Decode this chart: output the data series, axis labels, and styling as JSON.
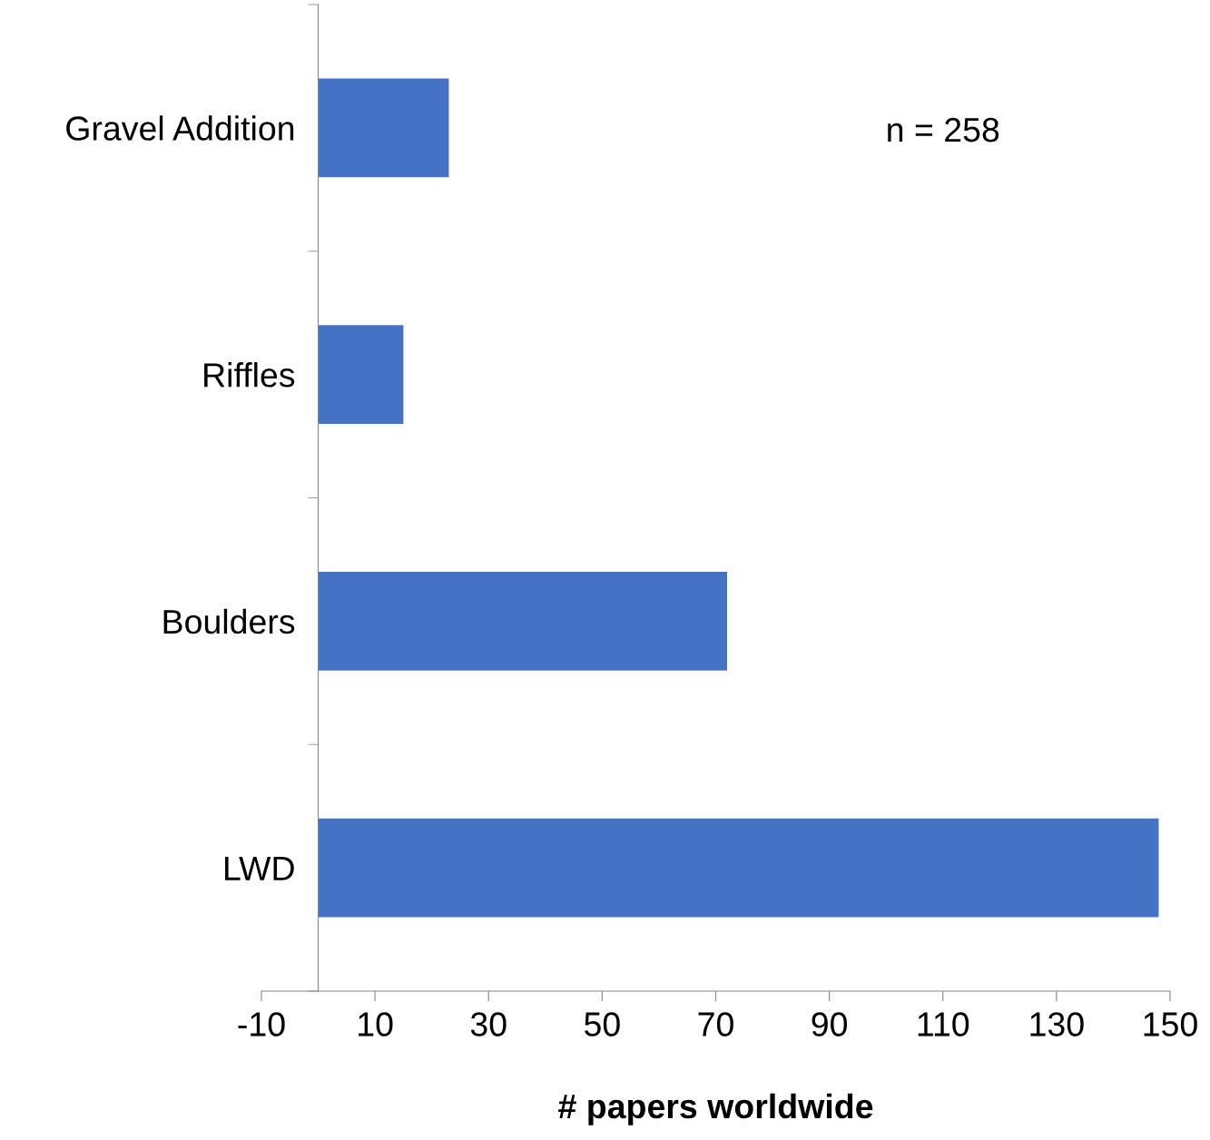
{
  "chart_data": {
    "type": "bar",
    "orientation": "horizontal",
    "xlabel": "# papers worldwide",
    "categories": [
      "Gravel Addition",
      "Riffles",
      "Boulders",
      "LWD"
    ],
    "values": [
      23,
      15,
      72,
      148
    ],
    "color": "#4472c4",
    "xlim": [
      -10,
      150
    ],
    "xticks": [
      -10,
      10,
      30,
      50,
      70,
      90,
      110,
      130,
      150
    ],
    "grid": false,
    "annotations": [
      "n = 258"
    ]
  }
}
